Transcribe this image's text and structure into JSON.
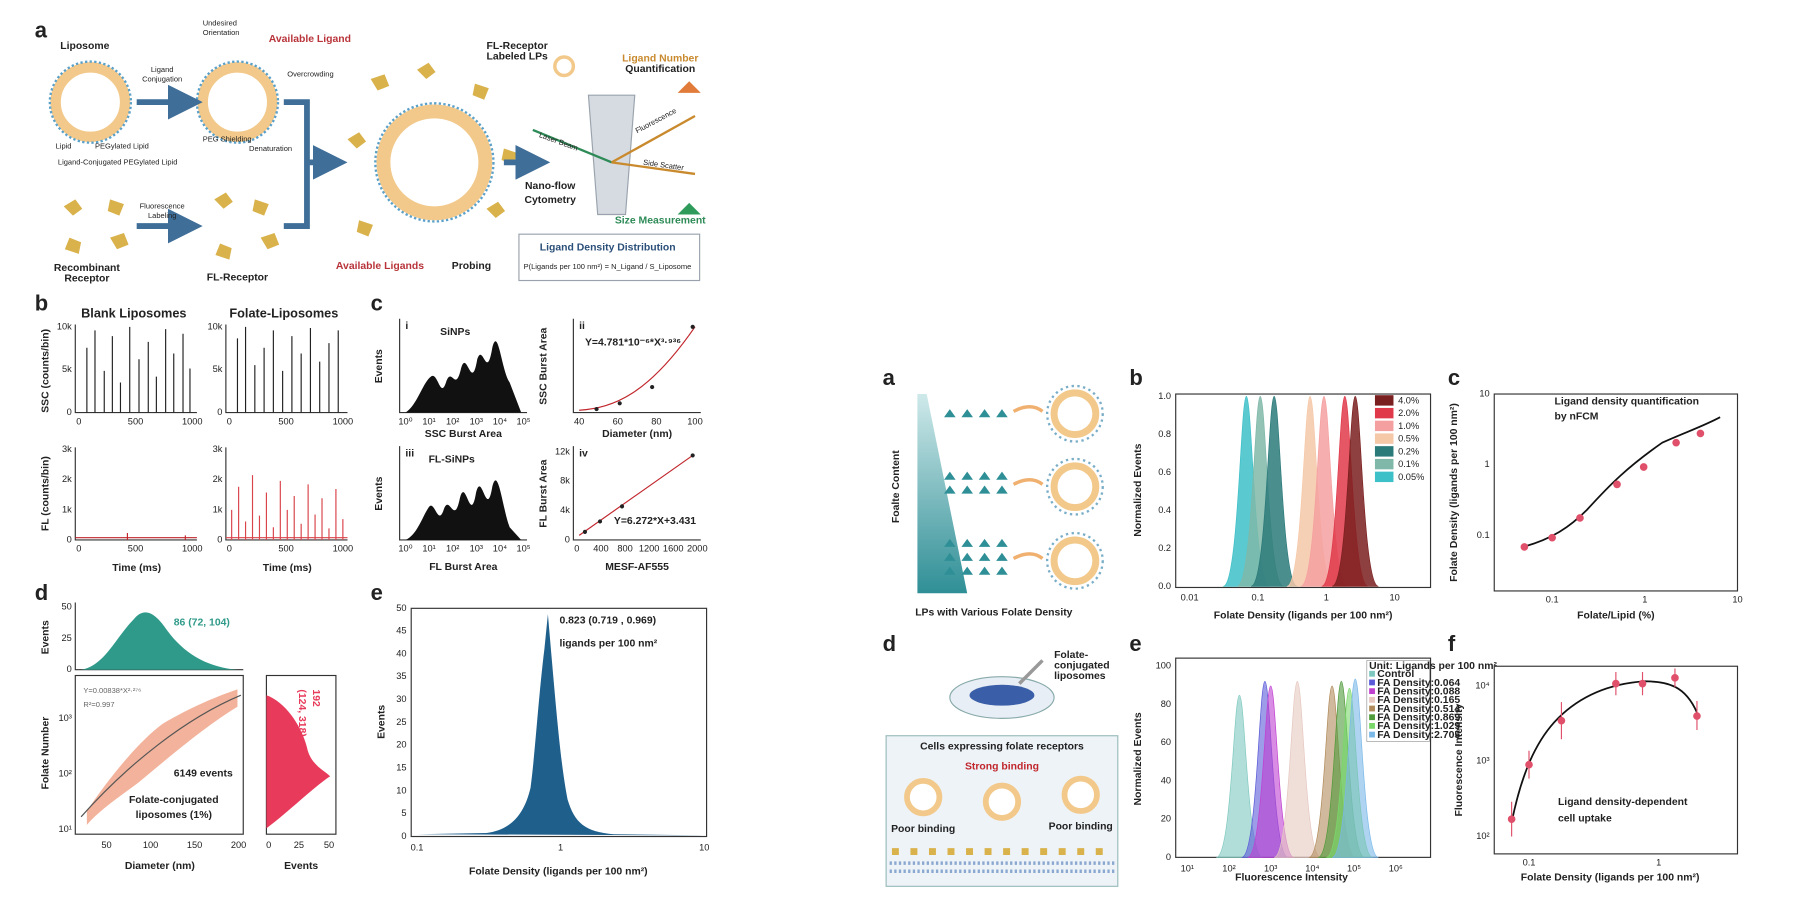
{
  "left": {
    "a": {
      "label": "a",
      "liposome": "Liposome",
      "conjugation": [
        "Ligand",
        "Conjugation"
      ],
      "undesired": [
        "Undesired",
        "Orientation"
      ],
      "available": "Available Ligand",
      "overcrowding": "Overcrowding",
      "peg": "PEG Shielding",
      "denaturation": "Denaturation",
      "legend": [
        "Lipid",
        "PEGylated Lipid",
        "Ligand-Conjugated PEGylated Lipid"
      ],
      "labeling": [
        "Fluorescence",
        "Labeling"
      ],
      "receptor": [
        "Recombinant",
        "Receptor"
      ],
      "fl_receptor": "FL-Receptor",
      "probing_red": "Available Ligands",
      "probing": "Probing",
      "labeled": [
        "FL-Receptor",
        "Labeled LPs"
      ],
      "quant": [
        "Ligand Number",
        "Quantification"
      ],
      "laser": "Laser Beam",
      "fluorescence": "Fluorescence",
      "side": "Side Scatter",
      "nano": [
        "Nano-flow",
        "Cytometry"
      ],
      "size": "Size Measurement",
      "distribution": "Ligand Density Distribution",
      "formula": "P(Ligands per 100 nm²) = N_Ligand / S_Liposome"
    },
    "b": {
      "label": "b",
      "blank": "Blank Liposomes",
      "folate": "Folate-Liposomes",
      "ssc_axis": "SSC (counts/bin)",
      "fl_axis": "FL (counts/bin)",
      "ssc_ticks": [
        "10k",
        "5k",
        "0"
      ],
      "fl_ticks": [
        "3k",
        "2k",
        "1k",
        "0"
      ],
      "x_ticks": [
        "0",
        "500",
        "1000"
      ],
      "x_axis": "Time (ms)"
    },
    "c": {
      "label": "c",
      "i": "i",
      "sinps": "SiNPs",
      "events": "Events",
      "ssc_burst": "SSC Burst Area",
      "log_ticks": [
        "10⁰",
        "10¹",
        "10²",
        "10³",
        "10⁴",
        "10⁵"
      ],
      "ii": "ii",
      "fit_ssc": "Y=4.781*10⁻⁶*X³·⁹³⁶",
      "diameter": "Diameter (nm)",
      "d_ticks": [
        "40",
        "60",
        "80",
        "100"
      ],
      "iii": "iii",
      "fl_sinps": "FL-SiNPs",
      "fl_burst": "FL Burst Area",
      "iv": "iv",
      "fit_fl": "Y=6.272*X+3.431",
      "mesf": "MESF-AF555",
      "m_ticks": [
        "0",
        "400",
        "800",
        "1200",
        "1600",
        "2000"
      ],
      "fl_ticks": [
        "12k",
        "8k",
        "4k",
        "0"
      ]
    },
    "d": {
      "label": "d",
      "ev_ticks": [
        "50",
        "25",
        "0"
      ],
      "events": "Events",
      "stat_x": "86 (72, 104)",
      "fit": "Y=0.00838*X²·²⁷⁶",
      "r2": "R²=0.997",
      "count": "6149 events",
      "sample": [
        "Folate-conjugated",
        "liposomes (1%)"
      ],
      "y_axis": "Folate Number",
      "y_ticks": [
        "10³",
        "10²",
        "10¹"
      ],
      "x_ticks": [
        "50",
        "100",
        "150",
        "200"
      ],
      "x_axis": "Diameter (nm)",
      "stat_y": [
        "192",
        "(124, 318)"
      ],
      "side_ticks": [
        "0",
        "25",
        "50"
      ],
      "side_axis": "Events"
    },
    "e": {
      "label": "e",
      "stat": "0.823 (0.719 , 0.969)",
      "unit": "ligands per 100 nm²",
      "y_axis": "Events",
      "y_ticks": [
        "50",
        "45",
        "40",
        "35",
        "30",
        "25",
        "20",
        "15",
        "10",
        "5",
        "0"
      ],
      "x_ticks": [
        "0.1",
        "1",
        "10"
      ],
      "x_axis": "Folate Density (ligands per 100 nm²)"
    }
  },
  "right": {
    "a": {
      "label": "a",
      "content": "Foalte Content",
      "caption": "LPs with Various Folate Density"
    },
    "b": {
      "label": "b",
      "legend": [
        "4.0%",
        "2.0%",
        "1.0%",
        "0.5%",
        "0.2%",
        "0.1%",
        "0.05%"
      ],
      "y_ticks": [
        "1.0",
        "0.8",
        "0.6",
        "0.4",
        "0.2",
        "0.0"
      ],
      "y_axis": "Normalized Events",
      "x_ticks": [
        "0.01",
        "0.1",
        "1",
        "10"
      ],
      "x_axis": "Folate Density (ligands per 100 nm²)"
    },
    "c": {
      "label": "c",
      "title": [
        "Ligand density quantification",
        "by nFCM"
      ],
      "y_ticks": [
        "10",
        "1",
        "0.1"
      ],
      "y_axis": "Folate Density (ligands per 100 nm²)",
      "x_ticks": [
        "0.1",
        "1",
        "10"
      ],
      "x_axis": "Folate/Lipid (%)"
    },
    "d": {
      "label": "d",
      "liposomes": [
        "Folate-",
        "conjugated",
        "liposomes"
      ],
      "cells": "Cells expressing folate receptors",
      "strong": "Strong binding",
      "poor_left": "Poor binding",
      "poor_right": "Poor binding"
    },
    "e": {
      "label": "e",
      "legend_title": "Unit: Ligands per 100 nm²",
      "legend": [
        "Control",
        "FA Density:0.064",
        "FA Density:0.088",
        "FA Density:0.165",
        "FA Density:0.514",
        "FA Density:0.869",
        "FA Density:1.029",
        "FA Density:2.705"
      ],
      "y_ticks": [
        "100",
        "80",
        "60",
        "40",
        "20",
        "0"
      ],
      "y_axis": "Normalized Events",
      "x_ticks": [
        "10¹",
        "10²",
        "10³",
        "10⁴",
        "10⁵",
        "10⁶"
      ],
      "x_axis": "Fluorescence Intensity"
    },
    "f": {
      "label": "f",
      "y_ticks": [
        "10⁴",
        "10³",
        "10²"
      ],
      "y_axis": "Fluorescence Intensity",
      "x_ticks": [
        "0.1",
        "1"
      ],
      "x_axis": "Folate Density (ligands per 100 nm²)",
      "note": [
        "Ligand density-dependent",
        "cell uptake"
      ]
    }
  }
}
